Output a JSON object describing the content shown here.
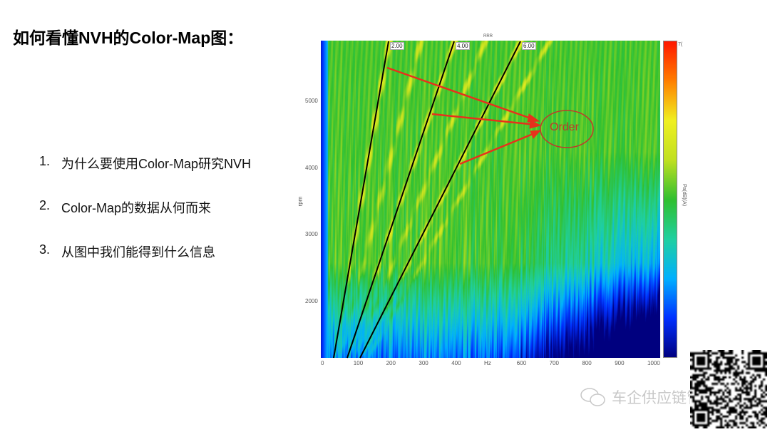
{
  "slide": {
    "title": "如何看懂NVH的Color-Map图：",
    "items": [
      {
        "num": "1.",
        "text": "为什么要使用Color-Map研究NVH"
      },
      {
        "num": "2.",
        "text": "Color-Map的数据从何而来"
      },
      {
        "num": "3.",
        "text": "从图中我们能得到什么信息"
      }
    ]
  },
  "figure": {
    "top_label": "RRR",
    "x_ticks": [
      "0",
      "100",
      "200",
      "300",
      "400",
      "Hz",
      "600",
      "700",
      "800",
      "900",
      "1000"
    ],
    "y_ticks": [
      "5000",
      "4000",
      "3000",
      "2000"
    ],
    "y_label": "rpm",
    "colorbar_label": "Pa(dB)(A)",
    "colorbar_max": "7(",
    "order_lines": [
      "2.00",
      "4.00",
      "6.00"
    ],
    "annotation": "Order",
    "annotation_color": "#d93a2b",
    "colormap": [
      "#00007f",
      "#0030ff",
      "#00b0ff",
      "#20d0a0",
      "#30c030",
      "#c0e020",
      "#f0f020",
      "#ff8000",
      "#ff1800"
    ]
  },
  "watermark": {
    "icon": "wechat-icon",
    "text": "车企供应链管理"
  }
}
